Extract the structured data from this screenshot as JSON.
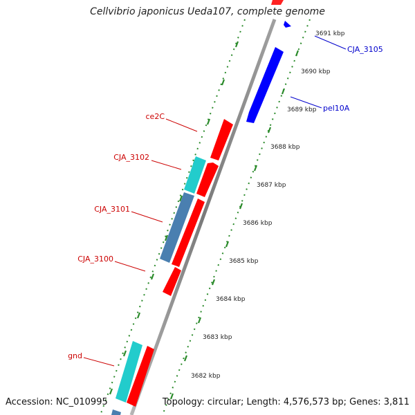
{
  "title": "Cellvibrio japonicus Ueda107, complete genome",
  "footer": {
    "accession": "Accession: NC_010995",
    "topology": "Topology: circular; Length: 4,576,573 bp; Genes: 3,811"
  },
  "colors": {
    "forward_gene": "#ff0000",
    "reverse_gene": "#0000ff",
    "rrna": "#22cccc",
    "steelblue": "#4a7fb0",
    "backbone": "#8a8a8a",
    "tick_dots": "#2a8a2a",
    "forward_label": "#cc0000",
    "reverse_label": "#0000cc"
  },
  "kbp_labels": [
    "3691 kbp",
    "3690 kbp",
    "3689 kbp",
    "3688 kbp",
    "3687 kbp",
    "3686 kbp",
    "3685 kbp",
    "3684 kbp",
    "3683 kbp",
    "3682 kbp"
  ],
  "gene_labels": [
    {
      "text": "CJA_3105",
      "strand": "reverse"
    },
    {
      "text": "pel10A",
      "strand": "reverse"
    },
    {
      "text": "ce2C",
      "strand": "forward"
    },
    {
      "text": "CJA_3102",
      "strand": "forward"
    },
    {
      "text": "CJA_3101",
      "strand": "forward"
    },
    {
      "text": "CJA_3100",
      "strand": "forward"
    },
    {
      "text": "gnd",
      "strand": "forward"
    }
  ]
}
